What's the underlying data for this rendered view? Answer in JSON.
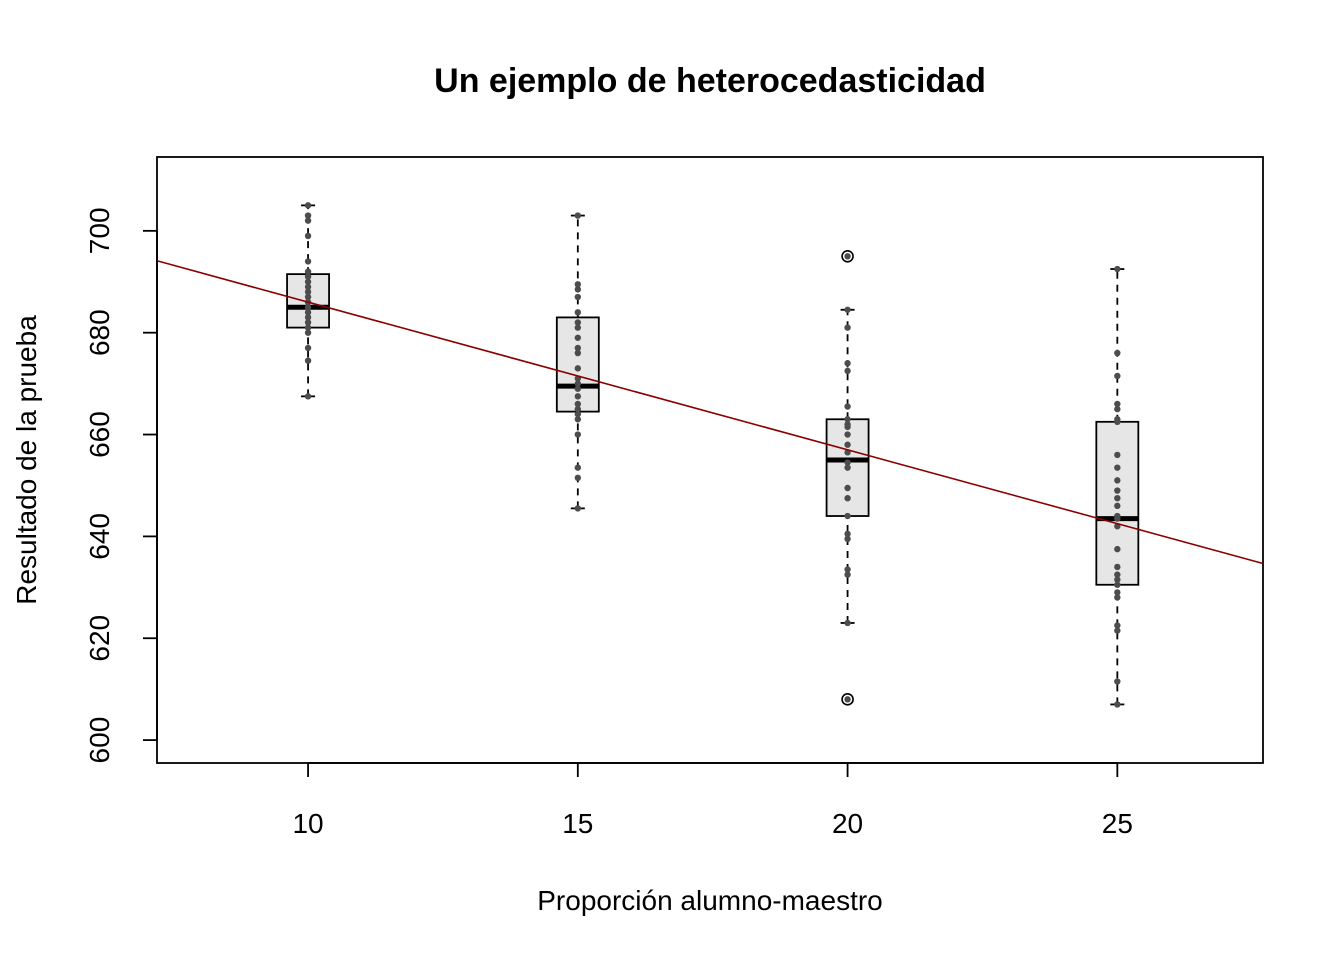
{
  "chart_data": {
    "type": "box",
    "title": "Un ejemplo de heterocedasticidad",
    "xlabel": "Proporción alumno-maestro",
    "ylabel": "Resultado de la prueba",
    "xlim": [
      7.2,
      27.7
    ],
    "ylim": [
      595.5,
      714.5
    ],
    "x_ticks": [
      10,
      15,
      20,
      25
    ],
    "y_ticks": [
      600,
      620,
      640,
      660,
      680,
      700
    ],
    "grid": false,
    "colors": {
      "box_fill": "#e6e6e6",
      "box_stroke": "#000000",
      "median": "#000000",
      "points": "#4d4d4d",
      "regression_line": "#8b0000"
    },
    "boxes": [
      {
        "x": 10,
        "whisker_low": 667.5,
        "q1": 681,
        "median": 685,
        "q3": 691.5,
        "whisker_high": 705,
        "outliers": []
      },
      {
        "x": 15,
        "whisker_low": 645.5,
        "q1": 664.5,
        "median": 669.5,
        "q3": 683,
        "whisker_high": 703,
        "outliers": []
      },
      {
        "x": 20,
        "whisker_low": 623,
        "q1": 644,
        "median": 655,
        "q3": 663,
        "whisker_high": 684.5,
        "outliers": [
          608,
          695
        ]
      },
      {
        "x": 25,
        "whisker_low": 607,
        "q1": 630.5,
        "median": 643.5,
        "q3": 662.5,
        "whisker_high": 692.5,
        "outliers": []
      }
    ],
    "points": [
      {
        "x": 10,
        "values": [
          667.5,
          674.5,
          677,
          680,
          681,
          682,
          683,
          684,
          685,
          686,
          687,
          688,
          689,
          690,
          691,
          692,
          694,
          699,
          702,
          703,
          705
        ]
      },
      {
        "x": 15,
        "values": [
          645.5,
          651.5,
          653.5,
          660,
          663,
          664,
          665,
          666,
          667.5,
          669,
          670,
          671,
          673,
          676,
          677,
          679,
          681,
          682,
          684,
          687,
          688.5,
          689.5,
          703
        ]
      },
      {
        "x": 20,
        "values": [
          608,
          623,
          632.5,
          633.5,
          639.5,
          640.5,
          644,
          647.5,
          649.5,
          653.5,
          654.5,
          656.5,
          658,
          660,
          661.5,
          662,
          663,
          665.5,
          672.5,
          674,
          681,
          684.5,
          695
        ]
      },
      {
        "x": 25,
        "values": [
          607,
          611.5,
          621.5,
          622.5,
          628,
          629,
          630.5,
          631.5,
          632.5,
          634,
          637.5,
          642,
          643.5,
          644,
          646,
          647.5,
          649,
          651,
          653.5,
          656,
          662.5,
          663,
          665,
          666,
          671.5,
          676,
          692.5
        ]
      }
    ],
    "regression_line": {
      "intercept": 715.0,
      "slope": -2.9,
      "x_range": [
        7.2,
        27.7
      ]
    }
  }
}
